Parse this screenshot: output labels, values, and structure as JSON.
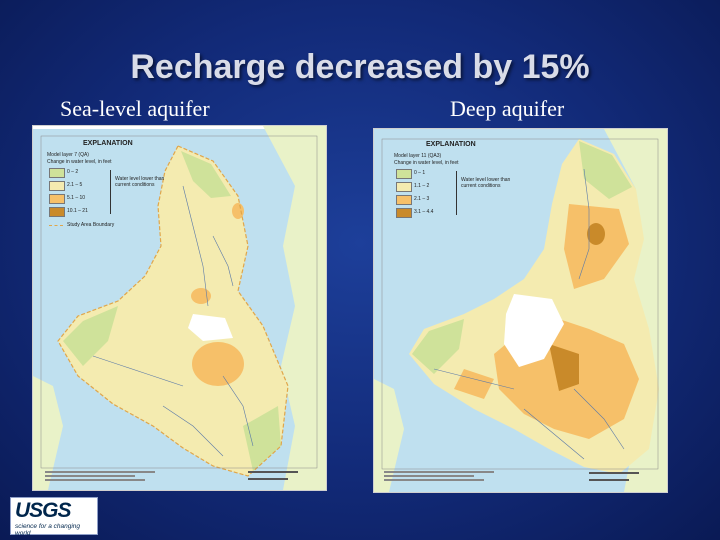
{
  "slide": {
    "title": "Recharge decreased by 15%",
    "left_caption": "Sea-level aquifer",
    "right_caption": "Deep aquifer"
  },
  "left_map": {
    "legend_heading": "EXPLANATION",
    "model_layer": "Model layer 7 (QA)",
    "legend_subtitle": "Change in water level, in feet",
    "classes": [
      {
        "label": "0 – 2",
        "color": "#cfe29a"
      },
      {
        "label": "2.1 – 5",
        "color": "#f4ebb0"
      },
      {
        "label": "5.1 – 10",
        "color": "#f6c069"
      },
      {
        "label": "10.1 – 21",
        "color": "#c98a2a"
      }
    ],
    "arrow_note": "Water level lower than current conditions",
    "boundary_label": "Study Area Boundary"
  },
  "right_map": {
    "legend_heading": "EXPLANATION",
    "model_layer": "Model layer 11 (QA3)",
    "legend_subtitle": "Change in water level, in feet",
    "classes": [
      {
        "label": "0 – 1",
        "color": "#cfe29a"
      },
      {
        "label": "1.1 – 2",
        "color": "#f4ebb0"
      },
      {
        "label": "2.1 – 3",
        "color": "#f6c069"
      },
      {
        "label": "3.1 – 4.4",
        "color": "#c98a2a"
      }
    ],
    "arrow_note": "Water level lower than current conditions"
  },
  "logo": {
    "name": "USGS",
    "tagline": "science for a changing world"
  },
  "colors": {
    "water": "#bfe0ef",
    "land": "#f4ebb0",
    "boundary": "#e0a64a"
  }
}
